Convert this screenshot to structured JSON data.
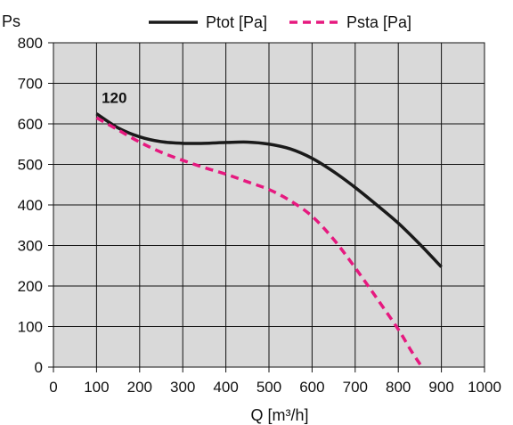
{
  "chart_data": {
    "type": "line",
    "ylabel": "Ps",
    "xlabel": "Q [m³/h]",
    "xlim": [
      0,
      1000
    ],
    "ylim": [
      0,
      800
    ],
    "x_ticks": [
      0,
      100,
      200,
      300,
      400,
      500,
      600,
      700,
      800,
      900,
      1000
    ],
    "y_ticks": [
      0,
      100,
      200,
      300,
      400,
      500,
      600,
      700,
      800
    ],
    "grid": true,
    "background": "#d9d9d9",
    "legend_position": "top",
    "annotation": {
      "text": "120",
      "x": 120,
      "y": 665
    },
    "series": [
      {
        "name": "Ptot [Pa]",
        "color": "#1a1a1a",
        "style": "solid",
        "points": [
          [
            100,
            625
          ],
          [
            150,
            590
          ],
          [
            200,
            568
          ],
          [
            250,
            556
          ],
          [
            300,
            552
          ],
          [
            350,
            552
          ],
          [
            400,
            554
          ],
          [
            450,
            555
          ],
          [
            500,
            550
          ],
          [
            550,
            538
          ],
          [
            600,
            515
          ],
          [
            650,
            482
          ],
          [
            700,
            443
          ],
          [
            750,
            400
          ],
          [
            800,
            355
          ],
          [
            850,
            303
          ],
          [
            900,
            247
          ]
        ]
      },
      {
        "name": "Psta [Pa]",
        "color": "#e6197f",
        "style": "dashed",
        "points": [
          [
            100,
            615
          ],
          [
            150,
            585
          ],
          [
            200,
            555
          ],
          [
            250,
            530
          ],
          [
            300,
            510
          ],
          [
            350,
            492
          ],
          [
            400,
            476
          ],
          [
            450,
            457
          ],
          [
            500,
            438
          ],
          [
            550,
            410
          ],
          [
            600,
            372
          ],
          [
            650,
            315
          ],
          [
            700,
            245
          ],
          [
            750,
            170
          ],
          [
            800,
            93
          ],
          [
            830,
            40
          ],
          [
            855,
            0
          ]
        ]
      }
    ]
  }
}
